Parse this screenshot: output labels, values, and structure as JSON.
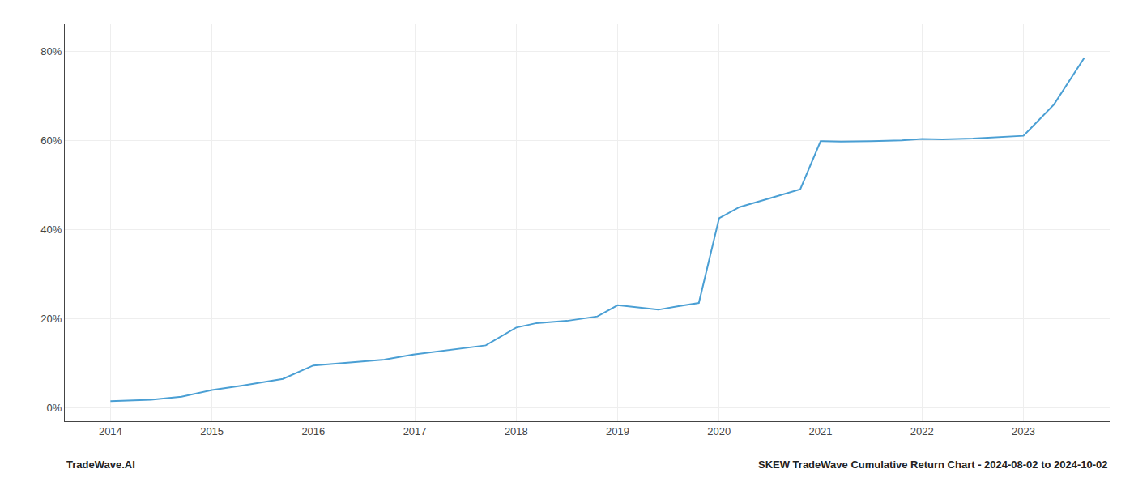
{
  "chart_data": {
    "type": "line",
    "x": [
      2014.0,
      2014.4,
      2014.7,
      2015.0,
      2015.3,
      2015.7,
      2016.0,
      2016.3,
      2016.7,
      2017.0,
      2017.3,
      2017.7,
      2018.0,
      2018.2,
      2018.5,
      2018.8,
      2019.0,
      2019.2,
      2019.4,
      2019.6,
      2019.8,
      2020.0,
      2020.2,
      2020.5,
      2020.8,
      2021.0,
      2021.2,
      2021.5,
      2021.8,
      2022.0,
      2022.2,
      2022.5,
      2022.8,
      2023.0,
      2023.3,
      2023.6
    ],
    "values": [
      0.015,
      0.018,
      0.025,
      0.04,
      0.05,
      0.065,
      0.095,
      0.1,
      0.108,
      0.12,
      0.128,
      0.14,
      0.18,
      0.19,
      0.195,
      0.205,
      0.23,
      0.225,
      0.22,
      0.228,
      0.235,
      0.425,
      0.45,
      0.47,
      0.49,
      0.598,
      0.597,
      0.598,
      0.6,
      0.603,
      0.602,
      0.604,
      0.608,
      0.61,
      0.68,
      0.785
    ],
    "color": "#4a9fd4",
    "xlim": [
      2013.55,
      2023.85
    ],
    "xticks": [
      2014,
      2015,
      2016,
      2017,
      2018,
      2019,
      2020,
      2021,
      2022,
      2023
    ],
    "ylim": [
      -0.03,
      0.86
    ],
    "yticks": [
      {
        "value": 0.0,
        "label": "0%"
      },
      {
        "value": 0.2,
        "label": "20%"
      },
      {
        "value": 0.4,
        "label": "40%"
      },
      {
        "value": 0.6,
        "label": "60%"
      },
      {
        "value": 0.8,
        "label": "80%"
      }
    ],
    "grid": true,
    "annotations": [
      "TradeWave.AI",
      "SKEW TradeWave Cumulative Return Chart - 2024-08-02 to 2024-10-02"
    ]
  }
}
